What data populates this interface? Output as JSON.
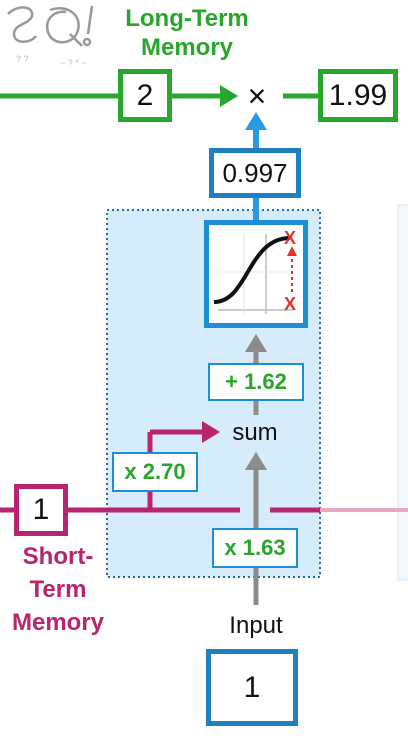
{
  "long_term_memory_label": "Long-Term Memory",
  "long_term_in_value": "2",
  "multiply_symbol": "×",
  "long_term_out_value": "1.99",
  "sigmoid_output_value": "0.997",
  "bias_label": "+ 1.62",
  "sum_label": "sum",
  "short_term_weight_label": "x 2.70",
  "short_term_value": "1",
  "input_weight_label": "x 1.63",
  "short_term_memory_label": "Short-Term Memory",
  "input_label": "Input",
  "input_value": "1",
  "colors": {
    "green": "#2aa52c",
    "blue": "#1f7fc0",
    "magenta": "#b8246f",
    "gray": "#8c8c8c",
    "panel": "#d6ecfa"
  },
  "icons": [
    "sigmoid-icon",
    "statquest-logo"
  ]
}
